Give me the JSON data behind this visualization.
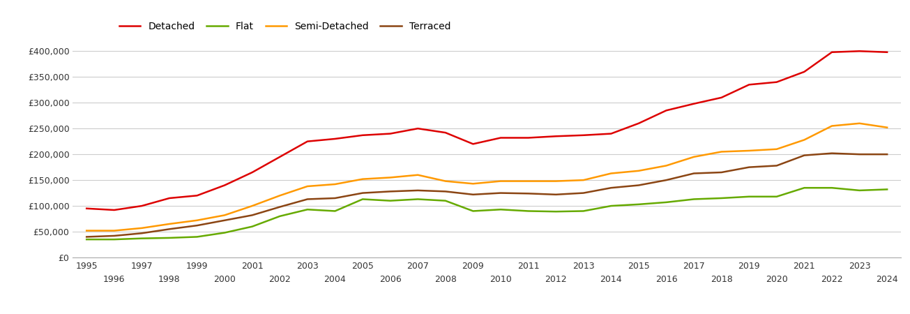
{
  "years": [
    1995,
    1996,
    1997,
    1998,
    1999,
    2000,
    2001,
    2002,
    2003,
    2004,
    2005,
    2006,
    2007,
    2008,
    2009,
    2010,
    2011,
    2012,
    2013,
    2014,
    2015,
    2016,
    2017,
    2018,
    2019,
    2020,
    2021,
    2022,
    2023,
    2024
  ],
  "detached": [
    95000,
    92000,
    100000,
    115000,
    120000,
    140000,
    165000,
    195000,
    225000,
    230000,
    237000,
    240000,
    250000,
    242000,
    220000,
    232000,
    232000,
    235000,
    237000,
    240000,
    260000,
    285000,
    298000,
    310000,
    335000,
    340000,
    360000,
    398000,
    400000,
    398000
  ],
  "flat": [
    35000,
    35000,
    37000,
    38000,
    40000,
    48000,
    60000,
    80000,
    93000,
    90000,
    113000,
    110000,
    113000,
    110000,
    90000,
    93000,
    90000,
    89000,
    90000,
    100000,
    103000,
    107000,
    113000,
    115000,
    118000,
    118000,
    135000,
    135000,
    130000,
    132000
  ],
  "semi_detached": [
    52000,
    52000,
    57000,
    65000,
    72000,
    82000,
    100000,
    120000,
    138000,
    142000,
    152000,
    155000,
    160000,
    148000,
    143000,
    148000,
    148000,
    148000,
    150000,
    163000,
    168000,
    178000,
    195000,
    205000,
    207000,
    210000,
    228000,
    255000,
    260000,
    252000
  ],
  "terraced": [
    40000,
    42000,
    47000,
    55000,
    62000,
    72000,
    82000,
    98000,
    113000,
    115000,
    125000,
    128000,
    130000,
    128000,
    122000,
    125000,
    124000,
    122000,
    125000,
    135000,
    140000,
    150000,
    163000,
    165000,
    175000,
    178000,
    198000,
    202000,
    200000,
    200000
  ],
  "colors": {
    "detached": "#dd0000",
    "flat": "#66aa00",
    "semi_detached": "#ff9900",
    "terraced": "#8B4513"
  },
  "ylim": [
    0,
    420000
  ],
  "yticks": [
    0,
    50000,
    100000,
    150000,
    200000,
    250000,
    300000,
    350000,
    400000
  ],
  "background_color": "#ffffff",
  "grid_color": "#cccccc",
  "linewidth": 1.8,
  "legend_labels": [
    "Detached",
    "Flat",
    "Semi-Detached",
    "Terraced"
  ]
}
